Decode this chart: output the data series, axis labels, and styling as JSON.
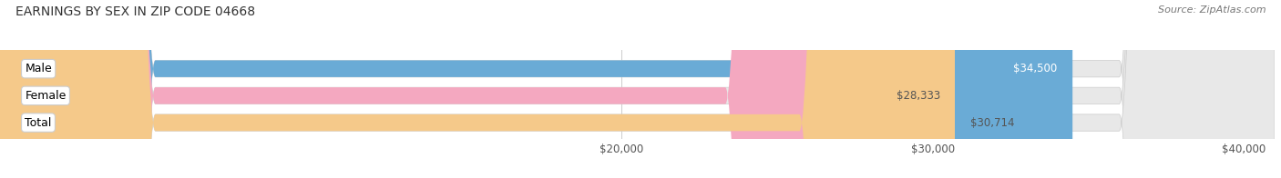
{
  "title": "EARNINGS BY SEX IN ZIP CODE 04668",
  "source": "Source: ZipAtlas.com",
  "categories": [
    "Male",
    "Female",
    "Total"
  ],
  "values": [
    34500,
    28333,
    30714
  ],
  "value_labels": [
    "$34,500",
    "$28,333",
    "$30,714"
  ],
  "bar_colors": [
    "#6aabd6",
    "#f4a8c0",
    "#f5c98a"
  ],
  "track_color": "#e8e8e8",
  "xmin": 20000,
  "xmax": 41000,
  "xticks": [
    20000,
    30000,
    40000
  ],
  "xtick_labels": [
    "$20,000",
    "$30,000",
    "$40,000"
  ],
  "bar_height": 0.62,
  "label_fontsize": 8.5,
  "title_fontsize": 10,
  "source_fontsize": 8,
  "category_fontsize": 9,
  "inside_label_color": "#ffffff",
  "outside_label_color": "#555555",
  "background_color": "#ffffff",
  "value_inside_threshold": 34000
}
